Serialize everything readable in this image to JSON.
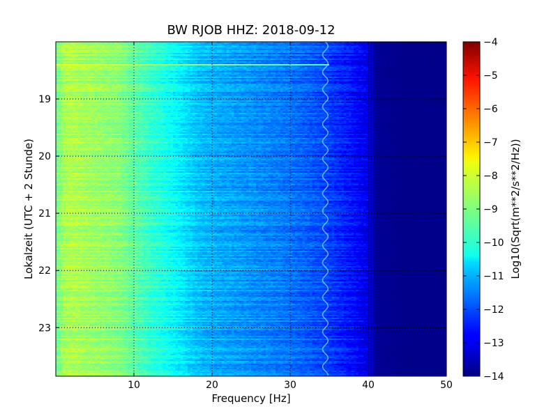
{
  "chart_data": {
    "type": "heatmap",
    "title": "BW RJOB HHZ: 2018-09-12",
    "xlabel": "Frequency [Hz]",
    "ylabel": "Lokalzeit (UTC + 2 Stunde)",
    "xlim": [
      0,
      50
    ],
    "ylim": [
      18.0,
      23.85
    ],
    "y_inverted": true,
    "x_ticks": [
      10,
      20,
      30,
      40,
      50
    ],
    "x_tick_labels": [
      "10",
      "20",
      "30",
      "40",
      "50"
    ],
    "y_ticks": [
      19,
      20,
      21,
      22,
      23
    ],
    "y_tick_labels": [
      "19",
      "20",
      "21",
      "22",
      "23"
    ],
    "grid": true,
    "colormap": "jet",
    "colorbar": {
      "label": "Log10(Sqrt(m**2/s**2/Hz))",
      "range": [
        -14,
        -4
      ],
      "ticks": [
        -4,
        -5,
        -6,
        -7,
        -8,
        -9,
        -10,
        -11,
        -12,
        -13,
        -14
      ],
      "tick_labels": [
        "−4",
        "−5",
        "−6",
        "−7",
        "−8",
        "−9",
        "−10",
        "−11",
        "−12",
        "−13",
        "−14"
      ]
    },
    "spectral_profile": {
      "frequency_hz": [
        0,
        1,
        2,
        5,
        8,
        10,
        12,
        14,
        16,
        18,
        20,
        25,
        30,
        34,
        36,
        38,
        40,
        41,
        45,
        50
      ],
      "log_amplitude": [
        -9.2,
        -8.6,
        -8.5,
        -8.7,
        -8.9,
        -9.3,
        -9.7,
        -10.0,
        -10.4,
        -10.8,
        -11.0,
        -11.3,
        -11.6,
        -12.0,
        -12.3,
        -12.6,
        -13.0,
        -13.8,
        -13.9,
        -13.9
      ]
    },
    "features": {
      "narrowband_line_hz": 34.5,
      "strong_band_time": 18.4,
      "strong_band_log_amplitude": -7.8,
      "lowpass_cutoff_hz": 40
    }
  }
}
